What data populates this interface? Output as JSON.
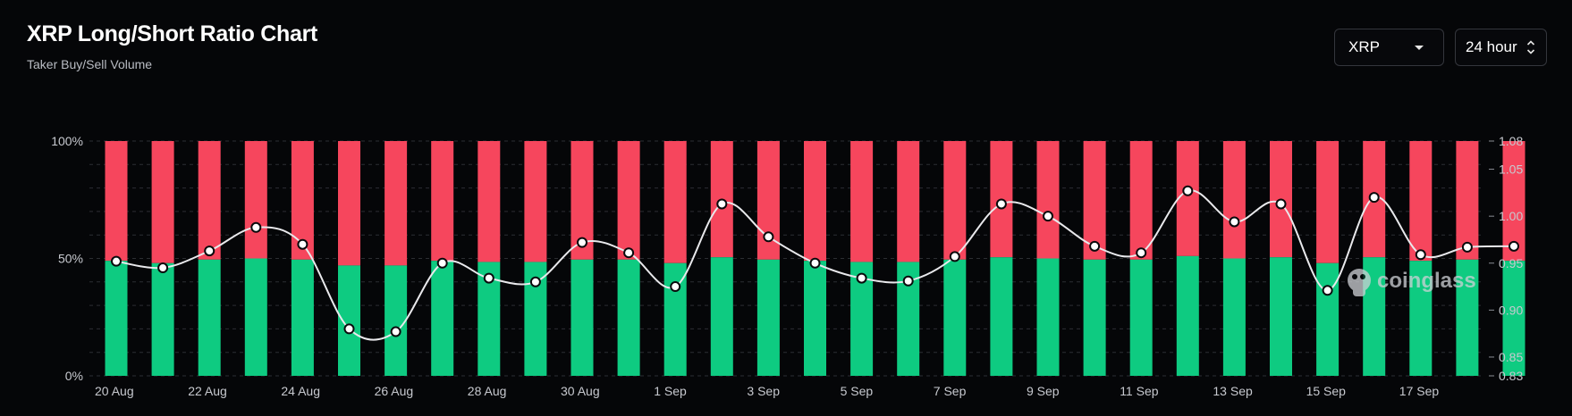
{
  "header": {
    "title": "XRP Long/Short Ratio Chart",
    "subtitle": "Taker Buy/Sell Volume"
  },
  "controls": {
    "symbol": "XRP",
    "period": "24 hour"
  },
  "watermark": "coinglass",
  "colors": {
    "long": "#0ecb81",
    "short": "#f6465d",
    "line": "#e9e9ec",
    "background": "#050608"
  },
  "chart_data": {
    "type": "bar",
    "stacked": true,
    "categories": [
      "20 Aug",
      "21 Aug",
      "22 Aug",
      "23 Aug",
      "24 Aug",
      "25 Aug",
      "26 Aug",
      "27 Aug",
      "28 Aug",
      "29 Aug",
      "30 Aug",
      "31 Aug",
      "1 Sep",
      "2 Sep",
      "3 Sep",
      "4 Sep",
      "5 Sep",
      "6 Sep",
      "7 Sep",
      "8 Sep",
      "9 Sep",
      "10 Sep",
      "11 Sep",
      "12 Sep",
      "13 Sep",
      "14 Sep",
      "15 Sep",
      "16 Sep",
      "17 Sep",
      "18 Sep",
      "19 Sep"
    ],
    "x_tick_labels": [
      "20 Aug",
      "22 Aug",
      "24 Aug",
      "26 Aug",
      "28 Aug",
      "30 Aug",
      "1 Sep",
      "3 Sep",
      "5 Sep",
      "7 Sep",
      "9 Sep",
      "11 Sep",
      "13 Sep",
      "15 Sep",
      "17 Sep"
    ],
    "series": [
      {
        "axis": "left",
        "type": "bar",
        "values": [
          49,
          48,
          49.5,
          50,
          49.5,
          47,
          47,
          49,
          48.5,
          48.5,
          49.5,
          49.5,
          48,
          50.5,
          49.5,
          49,
          48.5,
          48.5,
          49.5,
          50.5,
          50,
          49.5,
          49.5,
          51,
          50,
          50.5,
          48,
          50.5,
          49,
          49.5,
          49
        ]
      },
      {
        "axis": "left",
        "type": "bar",
        "values": [
          51,
          52,
          50.5,
          50,
          50.5,
          53,
          53,
          51,
          51.5,
          51.5,
          50.5,
          50.5,
          52,
          49.5,
          50.5,
          51,
          51.5,
          51.5,
          50.5,
          49.5,
          50,
          50.5,
          50.5,
          49,
          50,
          49.5,
          52,
          49.5,
          51,
          50.5,
          51
        ]
      },
      {
        "axis": "right",
        "type": "line",
        "values": [
          0.952,
          0.945,
          0.963,
          0.988,
          0.97,
          0.88,
          0.877,
          0.95,
          0.934,
          0.93,
          0.972,
          0.961,
          0.925,
          1.013,
          0.978,
          0.95,
          0.934,
          0.931,
          0.957,
          1.013,
          1.0,
          0.968,
          0.961,
          1.027,
          0.994,
          1.013,
          0.921,
          1.02,
          0.959,
          0.967,
          0.968
        ]
      }
    ],
    "y_left": {
      "min": 0,
      "max": 100,
      "ticks": [
        "0%",
        "50%",
        "100%"
      ]
    },
    "y_right": {
      "min": 0.83,
      "max": 1.08,
      "ticks": [
        "0.83",
        "0.85",
        "0.90",
        "0.95",
        "1.00",
        "1.05",
        "1.08"
      ]
    },
    "grid": true
  }
}
